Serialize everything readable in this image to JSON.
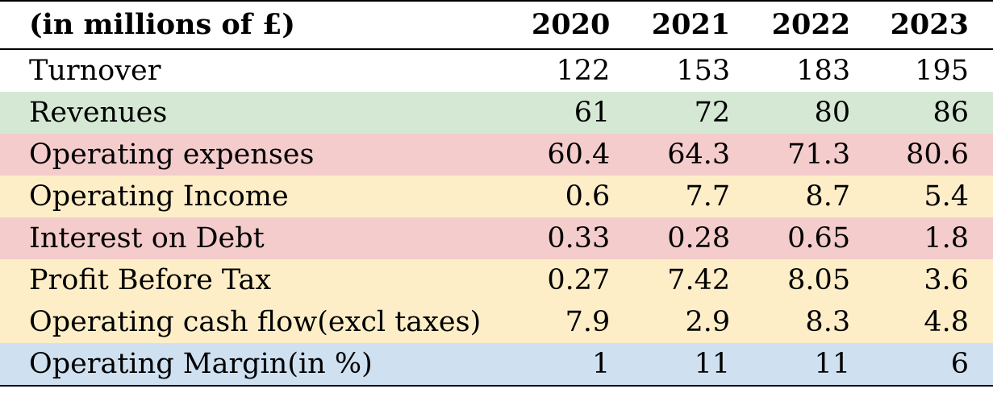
{
  "table": {
    "header": {
      "label": "(in millions of £)",
      "years": [
        "2020",
        "2021",
        "2022",
        "2023"
      ]
    },
    "rows": [
      {
        "label": "Turnover",
        "values": [
          "122",
          "153",
          "183",
          "195"
        ],
        "highlight": "#ffffff"
      },
      {
        "label": "Revenues",
        "values": [
          "61",
          "72",
          "80",
          "86"
        ],
        "highlight": "#d5e8d4"
      },
      {
        "label": "Operating expenses",
        "values": [
          "60.4",
          "64.3",
          "71.3",
          "80.6"
        ],
        "highlight": "#f4cccc"
      },
      {
        "label": "Operating Income",
        "values": [
          "0.6",
          "7.7",
          "8.7",
          "5.4"
        ],
        "highlight": "#fdeec8"
      },
      {
        "label": "Interest on Debt",
        "values": [
          "0.33",
          "0.28",
          "0.65",
          "1.8"
        ],
        "highlight": "#f4cccc"
      },
      {
        "label": "Profit Before Tax",
        "values": [
          "0.27",
          "7.42",
          "8.05",
          "3.6"
        ],
        "highlight": "#fdeec8"
      },
      {
        "label": "Operating cash flow(excl taxes)",
        "values": [
          "7.9",
          "2.9",
          "8.3",
          "4.8"
        ],
        "highlight": "#fdeec8"
      },
      {
        "label": "Operating Margin(in %)",
        "values": [
          "1",
          "11",
          "11",
          "6"
        ],
        "highlight": "#cfe0f1"
      }
    ]
  }
}
